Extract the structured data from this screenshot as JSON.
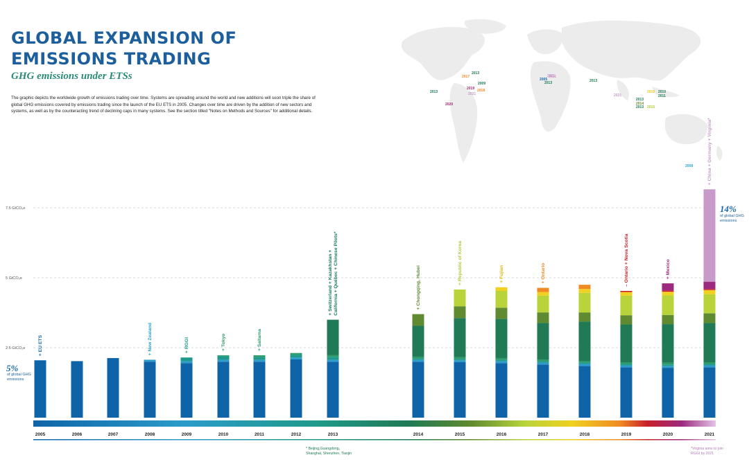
{
  "header": {
    "title": "GLOBAL EXPANSION OF EMISSIONS TRADING",
    "subtitle": "GHG emissions under ETSs",
    "description": "The graphic depicts the worldwide growth of emissions trading over time. Systems are spreading around the world and new additions will soon triple the share of global GHG emissions covered by emissions trading since the launch of the EU ETS in 2005. Changes over time are driven by the addition of new sectors and systems, as well as by the counteracting trend of declining caps in many systems. See the section titled \"Notes on Methods and Sources\" for additional details."
  },
  "share_start": {
    "value": "5%",
    "label": "of global GHG emissions"
  },
  "share_end": {
    "value": "14%",
    "label": "of global GHG emissions"
  },
  "footnotes": {
    "china_pilots": "* Beijing,Guangdong, Shanghai, Shenzhen, Tianjin",
    "virginia": "*Virginia aims to join RGGI by 2021"
  },
  "map_labels": [
    {
      "text": "2013",
      "color": "#1a7a52"
    },
    {
      "text": "2017",
      "color": "#f08a24"
    },
    {
      "text": "2021",
      "color": "#c79ac9"
    },
    {
      "text": "2013",
      "color": "#1a7a52"
    },
    {
      "text": "2009",
      "color": "#1a7a52"
    },
    {
      "text": "2019",
      "color": "#9c2a6e"
    },
    {
      "text": "2018",
      "color": "#f08a24"
    },
    {
      "text": "2021",
      "color": "#c79ac9"
    },
    {
      "text": "2020",
      "color": "#9c2a6e"
    },
    {
      "text": "2005",
      "color": "#1c6aab"
    },
    {
      "text": "2013",
      "color": "#1a7a52"
    },
    {
      "text": "2021",
      "color": "#c79ac9"
    },
    {
      "text": "2013",
      "color": "#1a7a52"
    },
    {
      "text": "2021",
      "color": "#c79ac9"
    },
    {
      "text": "2016",
      "color": "#e8c820"
    },
    {
      "text": "2010",
      "color": "#1a7a52"
    },
    {
      "text": "2011",
      "color": "#1a7a52"
    },
    {
      "text": "2013",
      "color": "#1a7a52"
    },
    {
      "text": "2014",
      "color": "#6a8a2a"
    },
    {
      "text": "2013",
      "color": "#1a7a52"
    },
    {
      "text": "2015",
      "color": "#b0c93a"
    },
    {
      "text": "2008",
      "color": "#2aa3c9"
    }
  ],
  "colors": {
    "EU ETS": "#0f64a8",
    "New Zealand": "#2b9cc9",
    "RGGI": "#1f9a8a",
    "Tokyo / Saitama": "#2d9a6a",
    "2013 systems": "#1f7a55",
    "Chongqing / Hubei": "#5f8a2f",
    "Republic of Korea": "#b8d43a",
    "Fujian": "#f0d020",
    "Ontario": "#f08a24",
    "Nova Scotia": "#c8202a",
    "Mexico": "#9c2a7e",
    "China / Germany / Virginia": "#c79ac9",
    "gridline": "#b5b5b5",
    "tick_label": "#555555"
  },
  "chart_data": {
    "type": "bar",
    "ylabel": "",
    "y_ticks": [
      {
        "value": 2.5,
        "label": "2.5 GtCO₂e"
      },
      {
        "value": 5,
        "label": "5 GtCO₂e"
      },
      {
        "value": 7.5,
        "label": "7.5 GtCO₂e"
      }
    ],
    "ylim": [
      0,
      7.5
    ],
    "grid": true,
    "categories": [
      "2005",
      "2006",
      "2007",
      "2008",
      "2009",
      "2010",
      "2011",
      "2012",
      "2013",
      "2014",
      "2015",
      "2016",
      "2017",
      "2018",
      "2019",
      "2020",
      "2021"
    ],
    "annotations": [
      {
        "year": "2005",
        "text": "+ EU ETS",
        "color": "#1c6aab"
      },
      {
        "year": "2008",
        "text": "+ New Zealand",
        "color": "#2aa3c9"
      },
      {
        "year": "2009",
        "text": "+ RGGI",
        "color": "#1f9a8a"
      },
      {
        "year": "2010",
        "text": "+ Tokyo",
        "color": "#2d9a6a"
      },
      {
        "year": "2011",
        "text": "+ Saitama",
        "color": "#2d9a6a"
      },
      {
        "year": "2013",
        "text": "+ Switzerland + Kazakhstan +|California + Québec + Chinese Pilots*",
        "color": "#1a7a52"
      },
      {
        "year": "2014",
        "text": "+ Chongqing, Hubei",
        "color": "#5f8a2f"
      },
      {
        "year": "2015",
        "text": "+ Republic of Korea",
        "color": "#b0c93a"
      },
      {
        "year": "2016",
        "text": "+ Fujian",
        "color": "#e0b800"
      },
      {
        "year": "2017",
        "text": "+ Ontario",
        "color": "#f08a24"
      },
      {
        "year": "2019",
        "text": "– Ontario + Nova Scotia",
        "color": "#c8202a"
      },
      {
        "year": "2020",
        "text": "+ Mexico",
        "color": "#9c2a7e"
      },
      {
        "year": "2021",
        "text": "+ China + Germany + Virginia*",
        "color": "#c79ac9"
      }
    ],
    "series": [
      {
        "name": "EU ETS",
        "color": "#0f64a8",
        "values": [
          2.05,
          2.02,
          2.13,
          2.0,
          1.95,
          2.0,
          2.0,
          2.08,
          2.0,
          2.0,
          1.98,
          1.95,
          1.9,
          1.85,
          1.8,
          1.78,
          1.8
        ]
      },
      {
        "name": "New Zealand",
        "color": "#2b9cc9",
        "values": [
          0,
          0,
          0,
          0.07,
          0.07,
          0.07,
          0.07,
          0.07,
          0.07,
          0.07,
          0.07,
          0.07,
          0.07,
          0.07,
          0.07,
          0.07,
          0.07
        ]
      },
      {
        "name": "RGGI",
        "color": "#1f9a8a",
        "values": [
          0,
          0,
          0,
          0,
          0.13,
          0.13,
          0.1,
          0.1,
          0.1,
          0.05,
          0.05,
          0.05,
          0.05,
          0.05,
          0.05,
          0.05,
          0.05
        ]
      },
      {
        "name": "Tokyo / Saitama",
        "color": "#2d9a6a",
        "values": [
          0,
          0,
          0,
          0,
          0,
          0.03,
          0.06,
          0.06,
          0.06,
          0.06,
          0.06,
          0.06,
          0.06,
          0.06,
          0.06,
          0.06,
          0.06
        ]
      },
      {
        "name": "2013 systems",
        "color": "#1f7a55",
        "values": [
          0,
          0,
          0,
          0,
          0,
          0,
          0,
          0,
          1.27,
          1.1,
          1.4,
          1.4,
          1.3,
          1.4,
          1.35,
          1.38,
          1.4
        ]
      },
      {
        "name": "Chongqing / Hubei",
        "color": "#5f8a2f",
        "values": [
          0,
          0,
          0,
          0,
          0,
          0,
          0,
          0,
          0,
          0.42,
          0.42,
          0.4,
          0.38,
          0.33,
          0.33,
          0.33,
          0.35
        ]
      },
      {
        "name": "Republic of Korea",
        "color": "#b8d43a",
        "values": [
          0,
          0,
          0,
          0,
          0,
          0,
          0,
          0,
          0,
          0,
          0.6,
          0.6,
          0.6,
          0.7,
          0.7,
          0.7,
          0.68
        ]
      },
      {
        "name": "Fujian",
        "color": "#f0d020",
        "values": [
          0,
          0,
          0,
          0,
          0,
          0,
          0,
          0,
          0,
          0,
          0,
          0.13,
          0.13,
          0.14,
          0.13,
          0.13,
          0.15
        ]
      },
      {
        "name": "Ontario",
        "color": "#f08a24",
        "values": [
          0,
          0,
          0,
          0,
          0,
          0,
          0,
          0,
          0,
          0,
          0,
          0,
          0.15,
          0.15,
          0,
          0,
          0
        ]
      },
      {
        "name": "Nova Scotia",
        "color": "#c8202a",
        "values": [
          0,
          0,
          0,
          0,
          0,
          0,
          0,
          0,
          0,
          0,
          0,
          0,
          0,
          0,
          0.04,
          0.04,
          0.04
        ]
      },
      {
        "name": "Mexico",
        "color": "#9c2a7e",
        "values": [
          0,
          0,
          0,
          0,
          0,
          0,
          0,
          0,
          0,
          0,
          0,
          0,
          0,
          0,
          0,
          0.26,
          0.26
        ]
      },
      {
        "name": "China / Germany / Virginia",
        "color": "#c79ac9",
        "values": [
          0,
          0,
          0,
          0,
          0,
          0,
          0,
          0,
          0,
          0,
          0,
          0,
          0,
          0,
          0,
          0,
          3.3
        ]
      }
    ]
  }
}
